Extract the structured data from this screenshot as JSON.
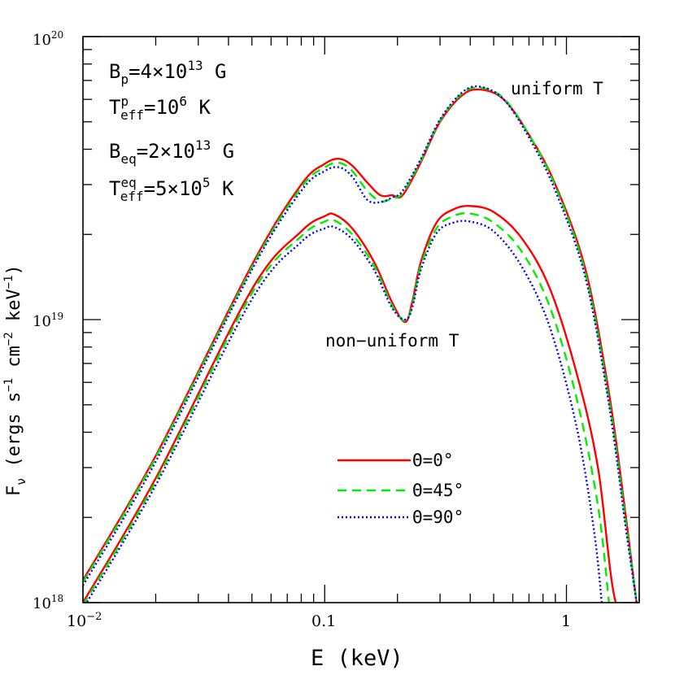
{
  "chart_data": {
    "type": "line",
    "x_scale": "log",
    "y_scale": "log",
    "xlim": [
      0.01,
      2.0
    ],
    "ylim": [
      1e+18,
      1e+20
    ],
    "xlabel": "E (keV)",
    "ylabel_parts": [
      "F",
      "ν",
      " (ergs s",
      "−1",
      " cm",
      "−2",
      " keV",
      "−1",
      ")"
    ],
    "x_tick_labels": [
      {
        "value": 0.01,
        "base": "10",
        "exp": "−2"
      },
      {
        "value": 0.1,
        "base": "0.1",
        "exp": ""
      },
      {
        "value": 1,
        "base": "1",
        "exp": ""
      }
    ],
    "y_tick_labels": [
      {
        "value": 1e+18,
        "base": "10",
        "exp": "18"
      },
      {
        "value": 1e+19,
        "base": "10",
        "exp": "19"
      },
      {
        "value": 1e+20,
        "base": "10",
        "exp": "20"
      }
    ],
    "parameters": [
      {
        "pre": "B",
        "sub": "p",
        "sup": "",
        "post": "=4×10",
        "post_sup": "13",
        "tail": " G"
      },
      {
        "pre": "T",
        "sub": "eff",
        "sup": "p",
        "post": "=10",
        "post_sup": "6",
        "tail": " K"
      },
      {
        "pre": "B",
        "sub": "eq",
        "sup": "",
        "post": "=2×10",
        "post_sup": "13",
        "tail": " G"
      },
      {
        "pre": "T",
        "sub": "eff",
        "sup": "eq",
        "post": "=5×10",
        "post_sup": "5",
        "tail": " K"
      }
    ],
    "annotations": {
      "uniform": "uniform T",
      "nonuniform": "non−uniform T"
    },
    "legend_position": "lower-center",
    "series": [
      {
        "name": "Θ=0°",
        "group": "uniform",
        "color": "#ff0000",
        "dash": "solid",
        "x": [
          0.01,
          0.02,
          0.05,
          0.08,
          0.1,
          0.115,
          0.13,
          0.15,
          0.17,
          0.19,
          0.21,
          0.25,
          0.3,
          0.37,
          0.44,
          0.55,
          0.7,
          0.9,
          1.2,
          1.5,
          1.75,
          1.95
        ],
        "y": [
          1.2e+18,
          3.3e+18,
          1.56e+19,
          3e+19,
          3.55e+19,
          3.7e+19,
          3.5e+19,
          3.05e+19,
          2.75e+19,
          2.75e+19,
          2.75e+19,
          3.6e+19,
          5e+19,
          6.2e+19,
          6.5e+19,
          6e+19,
          4.5e+19,
          3e+19,
          1.5e+19,
          5.5e+18,
          2.1e+18,
          1e+18
        ]
      },
      {
        "name": "Θ=45°",
        "group": "uniform",
        "color": "#00ee00",
        "dash": "dashed",
        "x": [
          0.01,
          0.02,
          0.05,
          0.08,
          0.1,
          0.115,
          0.13,
          0.15,
          0.17,
          0.19,
          0.21,
          0.25,
          0.3,
          0.37,
          0.44,
          0.55,
          0.7,
          0.9,
          1.2,
          1.5,
          1.75,
          1.95
        ],
        "y": [
          1.18e+18,
          3.25e+18,
          1.53e+19,
          2.93e+19,
          3.45e+19,
          3.58e+19,
          3.35e+19,
          2.85e+19,
          2.62e+19,
          2.68e+19,
          2.8e+19,
          3.65e+19,
          5.05e+19,
          6.3e+19,
          6.6e+19,
          6.05e+19,
          4.5e+19,
          2.95e+19,
          1.45e+19,
          5.2e+18,
          2e+18,
          1e+18
        ]
      },
      {
        "name": "Θ=90°",
        "group": "uniform",
        "color": "#0000ee",
        "dash": "dotted",
        "x": [
          0.01,
          0.02,
          0.05,
          0.08,
          0.1,
          0.115,
          0.13,
          0.15,
          0.17,
          0.19,
          0.21,
          0.25,
          0.3,
          0.37,
          0.44,
          0.55,
          0.7,
          0.9,
          1.2,
          1.5,
          1.75,
          1.95
        ],
        "y": [
          1.15e+18,
          3.15e+18,
          1.5e+19,
          2.85e+19,
          3.35e+19,
          3.45e+19,
          3.2e+19,
          2.65e+19,
          2.6e+19,
          2.7e+19,
          2.85e+19,
          3.7e+19,
          5.1e+19,
          6.35e+19,
          6.65e+19,
          6e+19,
          4.4e+19,
          2.85e+19,
          1.4e+19,
          5e+18,
          1.9e+18,
          1e+18
        ]
      },
      {
        "name": "Θ=0°",
        "group": "nonuniform",
        "color": "#ff0000",
        "dash": "solid",
        "x": [
          0.01,
          0.02,
          0.05,
          0.08,
          0.1,
          0.11,
          0.13,
          0.16,
          0.19,
          0.215,
          0.23,
          0.25,
          0.29,
          0.34,
          0.4,
          0.5,
          0.65,
          0.85,
          1.1,
          1.35,
          1.6,
          1.95
        ],
        "y": [
          1e+18,
          2.75e+18,
          1.28e+19,
          2.05e+19,
          2.32e+19,
          2.35e+19,
          2.1e+19,
          1.6e+19,
          1.15e+19,
          9.8e+18,
          1.15e+19,
          1.6e+19,
          2.2e+19,
          2.45e+19,
          2.52e+19,
          2.4e+19,
          1.95e+19,
          1.3e+19,
          6.5e+18,
          3e+18,
          1e+18,
          1e+18
        ]
      },
      {
        "name": "Θ=45°",
        "group": "nonuniform",
        "color": "#00ee00",
        "dash": "dashed",
        "x": [
          0.01,
          0.02,
          0.05,
          0.08,
          0.1,
          0.11,
          0.13,
          0.16,
          0.19,
          0.215,
          0.23,
          0.25,
          0.29,
          0.34,
          0.4,
          0.5,
          0.65,
          0.85,
          1.1,
          1.35,
          1.5
        ],
        "y": [
          9.8e+17,
          2.68e+18,
          1.24e+19,
          1.97e+19,
          2.22e+19,
          2.24e+19,
          2e+19,
          1.55e+19,
          1.12e+19,
          9.9e+18,
          1.12e+19,
          1.55e+19,
          2.1e+19,
          2.32e+19,
          2.37e+19,
          2.2e+19,
          1.75e+19,
          1.12e+19,
          5.3e+18,
          2.2e+18,
          1e+18
        ]
      },
      {
        "name": "Θ=90°",
        "group": "nonuniform",
        "color": "#0000ee",
        "dash": "dotted",
        "x": [
          0.01,
          0.02,
          0.05,
          0.08,
          0.1,
          0.11,
          0.13,
          0.16,
          0.19,
          0.215,
          0.23,
          0.25,
          0.29,
          0.34,
          0.4,
          0.5,
          0.65,
          0.85,
          1.1,
          1.3,
          1.4
        ],
        "y": [
          9.5e+17,
          2.6e+18,
          1.18e+19,
          1.88e+19,
          2.1e+19,
          2.12e+19,
          1.92e+19,
          1.5e+19,
          1.1e+19,
          1e+19,
          1.1e+19,
          1.5e+19,
          2.02e+19,
          2.2e+19,
          2.22e+19,
          2.05e+19,
          1.55e+19,
          9.5e+18,
          4.2e+18,
          1.8e+18,
          1e+18
        ]
      }
    ]
  }
}
